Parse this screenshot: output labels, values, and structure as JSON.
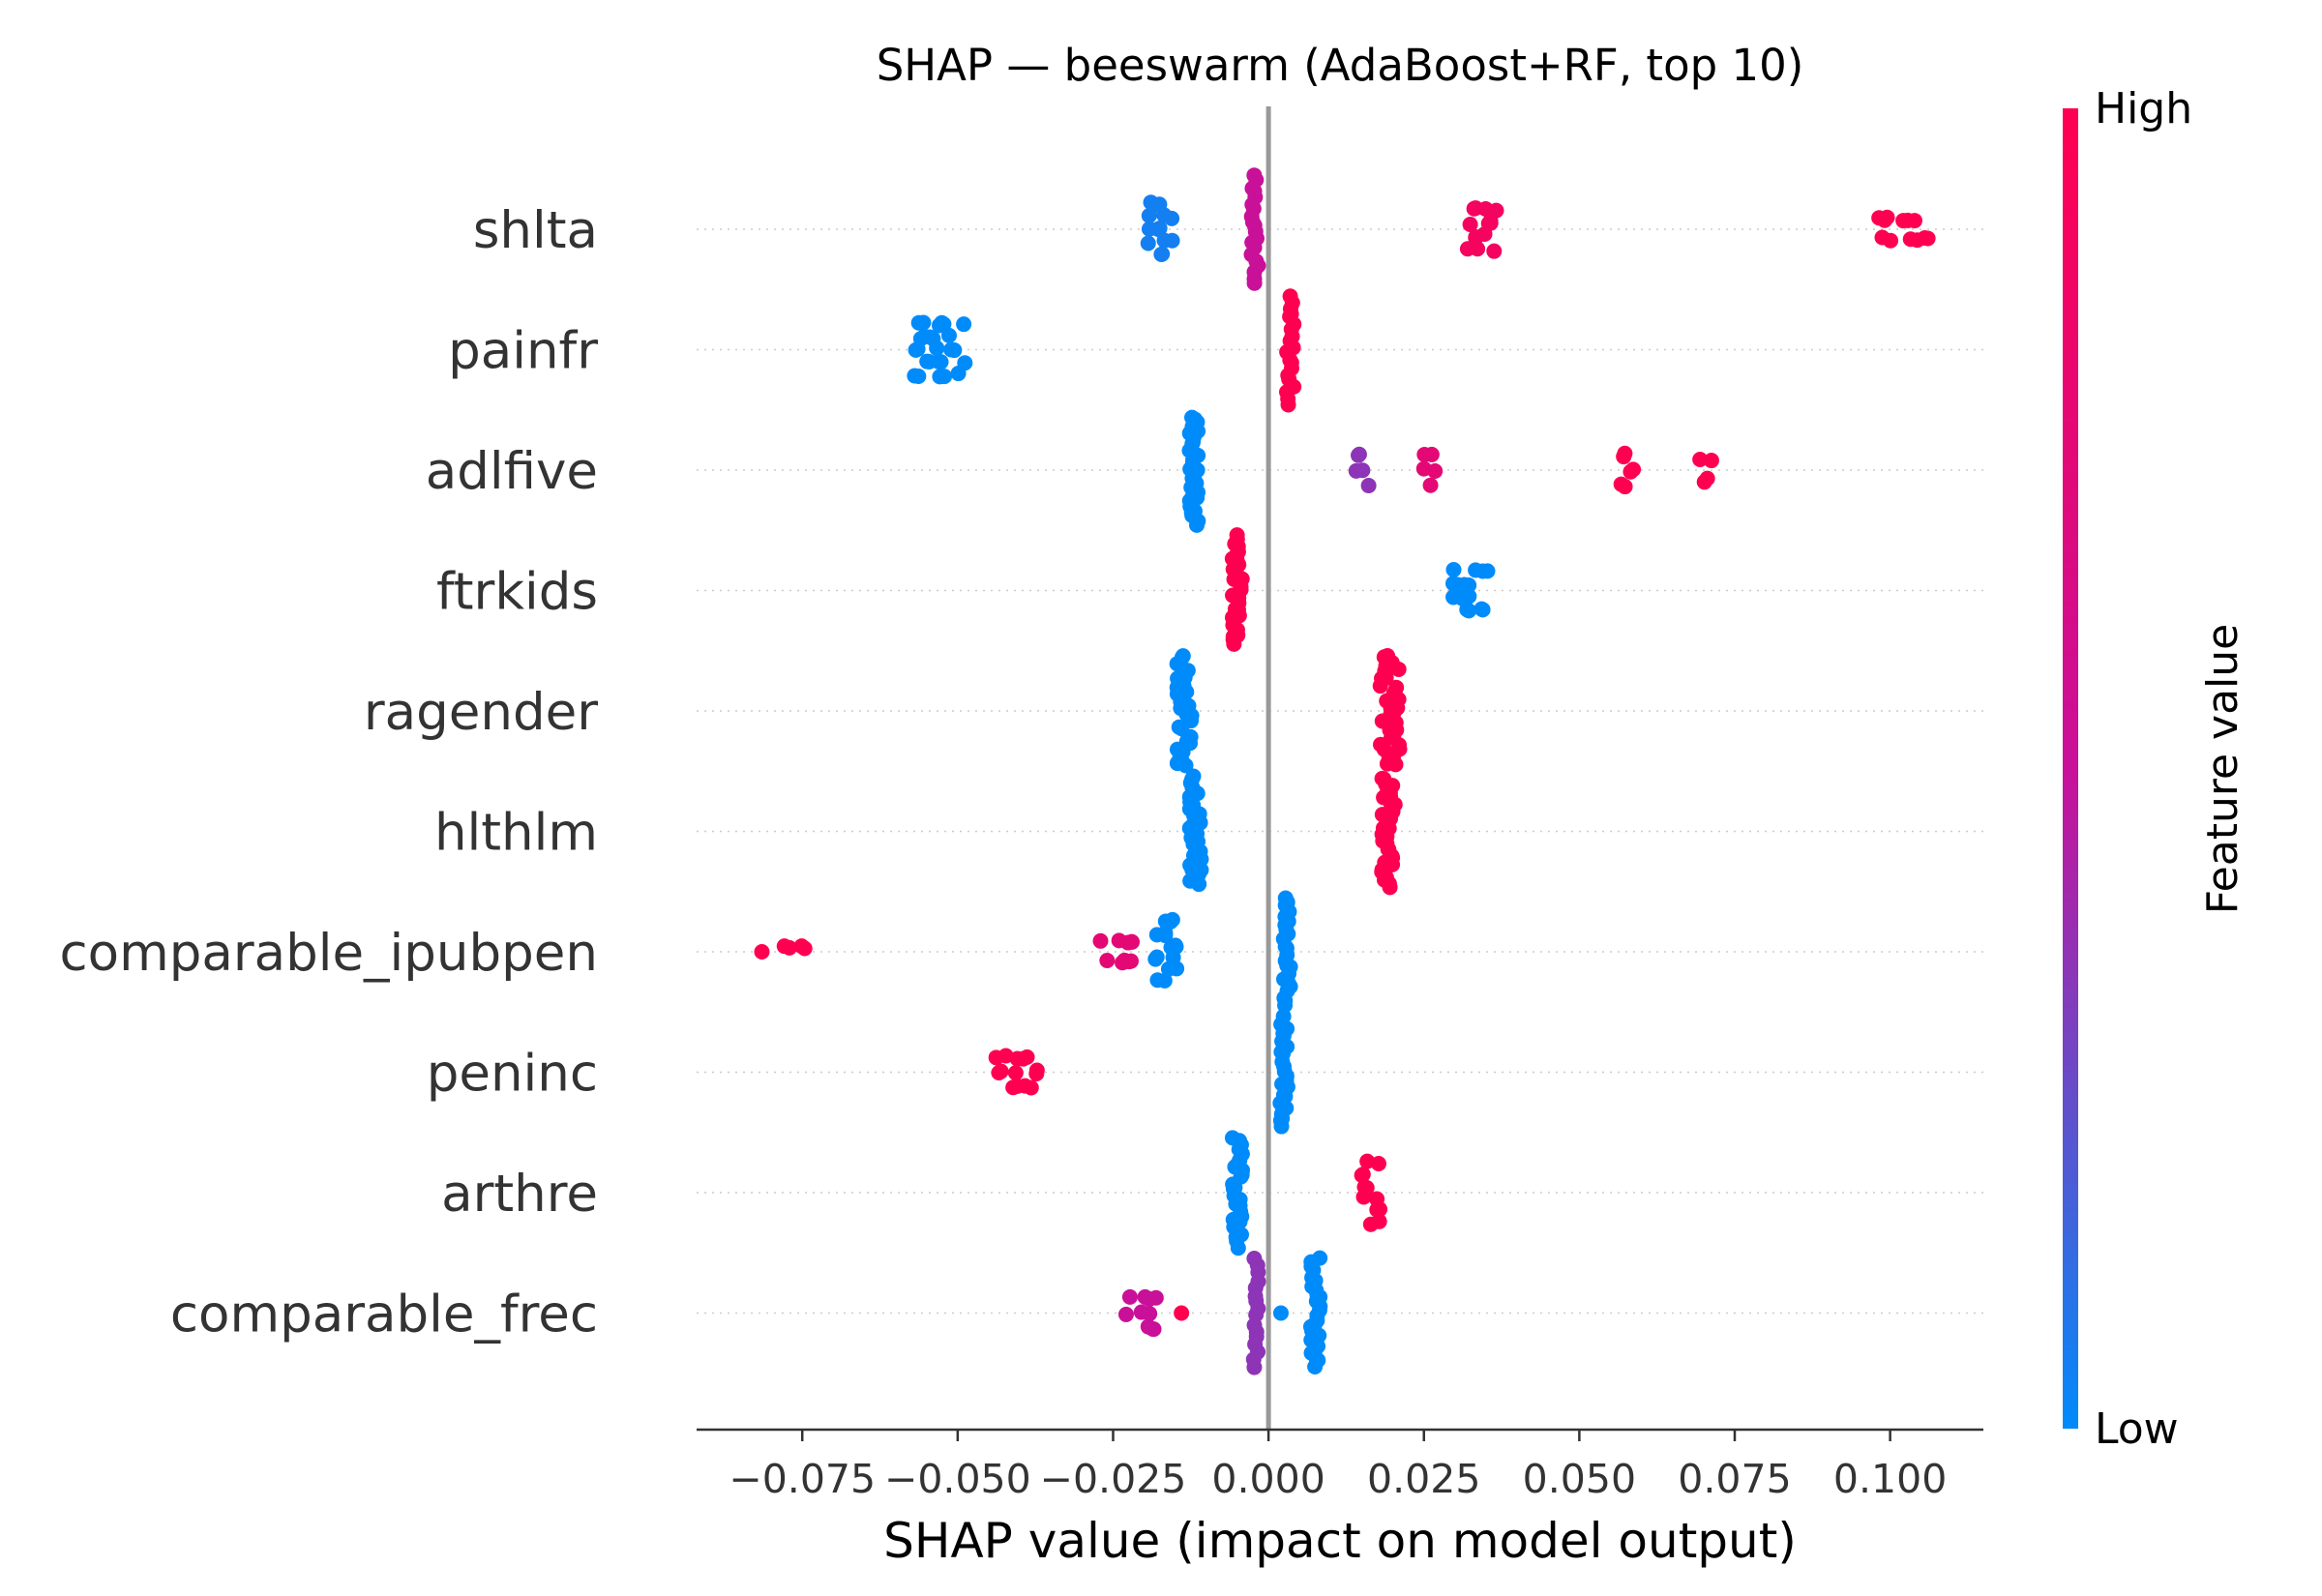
{
  "chart_data": {
    "type": "scatter",
    "subtype": "beeswarm",
    "title": "SHAP — beeswarm (AdaBoost+RF, top 10)",
    "xlabel": "SHAP value (impact on model output)",
    "ylabel": "",
    "xlim": [
      -0.092,
      0.115
    ],
    "xticks": [
      -0.075,
      -0.05,
      -0.025,
      0.0,
      0.025,
      0.05,
      0.075,
      0.1
    ],
    "xtick_labels": [
      "−0.075",
      "−0.050",
      "−0.025",
      "0.000",
      "0.025",
      "0.050",
      "0.075",
      "0.100"
    ],
    "grid": false,
    "zero_line": true,
    "colorbar": {
      "title": "Feature value",
      "high_label": "High",
      "low_label": "Low",
      "high_color": "#ff0051",
      "mid_color": "#c91099",
      "low_color": "#008bfb",
      "placement": "right"
    },
    "features": [
      {
        "name": "shlta",
        "clusters": [
          {
            "x": -0.0175,
            "w": 0.0022,
            "n": 14,
            "v": 0.05
          },
          {
            "x": -0.0022,
            "w": 0.0006,
            "n": 20,
            "v": 0.5
          },
          {
            "x": 0.0345,
            "w": 0.0025,
            "n": 14,
            "v": 0.9
          },
          {
            "x": 0.1025,
            "w": 0.0045,
            "n": 12,
            "v": 1.0
          }
        ]
      },
      {
        "name": "painfr",
        "clusters": [
          {
            "x": -0.0525,
            "w": 0.0045,
            "n": 26,
            "v": 0.0
          },
          {
            "x": 0.0035,
            "w": 0.0006,
            "n": 20,
            "v": 1.0
          }
        ]
      },
      {
        "name": "adlfive",
        "clusters": [
          {
            "x": -0.012,
            "w": 0.0008,
            "n": 30,
            "v": 0.0
          },
          {
            "x": 0.015,
            "w": 0.0012,
            "n": 5,
            "v": 0.35
          },
          {
            "x": 0.026,
            "w": 0.0012,
            "n": 5,
            "v": 0.75
          },
          {
            "x": 0.0575,
            "w": 0.0015,
            "n": 6,
            "v": 1.0
          },
          {
            "x": 0.0705,
            "w": 0.0012,
            "n": 4,
            "v": 1.0
          }
        ]
      },
      {
        "name": "ftrkids",
        "clusters": [
          {
            "x": -0.005,
            "w": 0.0008,
            "n": 30,
            "v": 1.0
          },
          {
            "x": 0.0325,
            "w": 0.0035,
            "n": 16,
            "v": 0.0
          }
        ]
      },
      {
        "name": "ragender",
        "clusters": [
          {
            "x": -0.0135,
            "w": 0.0012,
            "n": 32,
            "v": 0.0
          },
          {
            "x": 0.0195,
            "w": 0.0016,
            "n": 32,
            "v": 1.0
          }
        ]
      },
      {
        "name": "hlthlm",
        "clusters": [
          {
            "x": -0.0118,
            "w": 0.001,
            "n": 32,
            "v": 0.0
          },
          {
            "x": 0.0192,
            "w": 0.0012,
            "n": 32,
            "v": 1.0
          }
        ]
      },
      {
        "name": "comparable_ipubpen",
        "clusters": [
          {
            "x": -0.0815,
            "w": 0.0003,
            "n": 1,
            "v": 1.0
          },
          {
            "x": -0.0755,
            "w": 0.0025,
            "n": 4,
            "v": 1.0
          },
          {
            "x": -0.0245,
            "w": 0.0035,
            "n": 10,
            "v": 0.75
          },
          {
            "x": -0.0165,
            "w": 0.0018,
            "n": 16,
            "v": 0.0
          },
          {
            "x": 0.003,
            "w": 0.0006,
            "n": 24,
            "v": 0.0
          }
        ]
      },
      {
        "name": "peninc",
        "clusters": [
          {
            "x": -0.0405,
            "w": 0.0035,
            "n": 14,
            "v": 1.0
          },
          {
            "x": 0.0025,
            "w": 0.0006,
            "n": 24,
            "v": 0.0
          }
        ]
      },
      {
        "name": "arthre",
        "clusters": [
          {
            "x": -0.005,
            "w": 0.0008,
            "n": 28,
            "v": 0.0
          },
          {
            "x": 0.0165,
            "w": 0.0015,
            "n": 12,
            "v": 1.0
          }
        ]
      },
      {
        "name": "comparable_frec",
        "clusters": [
          {
            "x": -0.0205,
            "w": 0.0025,
            "n": 10,
            "v": 0.5
          },
          {
            "x": -0.014,
            "w": 0.0004,
            "n": 1,
            "v": 1.0
          },
          {
            "x": -0.002,
            "w": 0.0004,
            "n": 16,
            "v": 0.35
          },
          {
            "x": 0.002,
            "w": 0.0004,
            "n": 1,
            "v": 0.0
          },
          {
            "x": 0.0075,
            "w": 0.0008,
            "n": 26,
            "v": 0.0
          }
        ]
      }
    ]
  }
}
